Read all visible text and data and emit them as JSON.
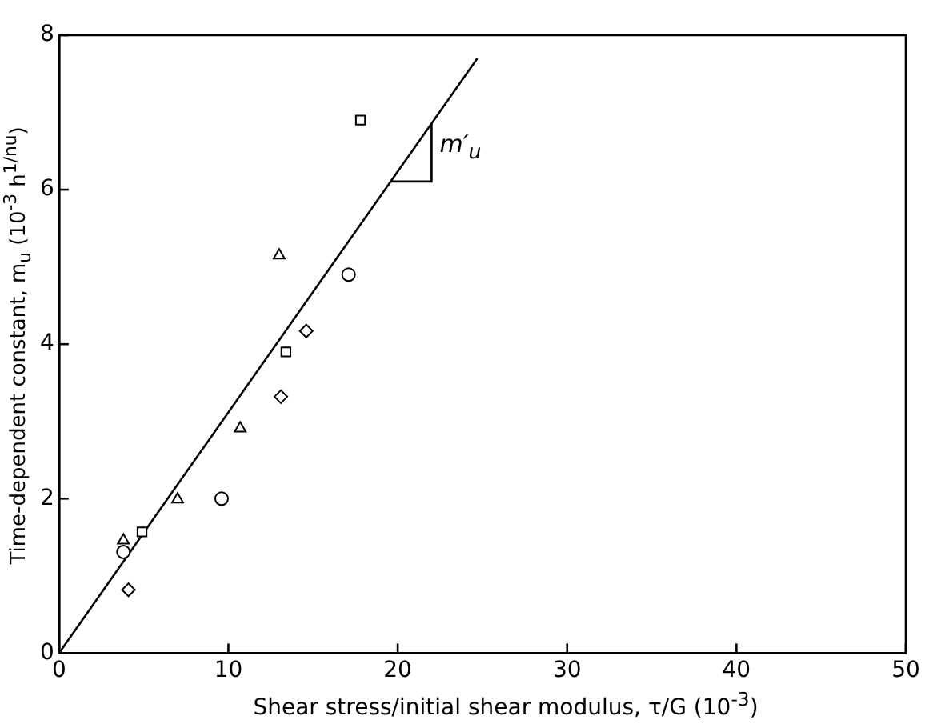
{
  "chart_data": {
    "type": "scatter",
    "xlabel": "Shear stress/initial shear modulus, τ/G (10$^{-3}$)",
    "ylabel": "Time-dependent constant, m$_{u}$ (10$^{-3}$ h$^{1/nu}$)",
    "xlim": [
      0,
      50
    ],
    "ylim": [
      0,
      8
    ],
    "xticks": [
      0,
      10,
      20,
      30,
      40,
      50
    ],
    "yticks": [
      0,
      2,
      4,
      6,
      8
    ],
    "grid": false,
    "legend": false,
    "series": [
      {
        "color": "#000000",
        "marker": "square",
        "x": [
          17.8,
          13.4,
          4.9
        ],
        "values": [
          6.9,
          3.9,
          1.57
        ]
      },
      {
        "color": "#000000",
        "marker": "triangle",
        "x": [
          13.0,
          10.7,
          7.0,
          3.8
        ],
        "values": [
          5.15,
          2.91,
          1.99,
          1.46
        ]
      },
      {
        "color": "#000000",
        "marker": "circle",
        "x": [
          17.1,
          9.6,
          3.8
        ],
        "values": [
          4.9,
          2.0,
          1.31
        ]
      },
      {
        "color": "#000000",
        "marker": "diamond",
        "x": [
          14.6,
          13.1,
          4.1
        ],
        "values": [
          4.17,
          3.32,
          0.82
        ]
      },
      {
        "type": "line",
        "color": "#000000",
        "marker": "none",
        "x": [
          0,
          24.7
        ],
        "values": [
          0,
          7.7
        ]
      }
    ],
    "annotations": [
      {
        "text": "m′$_{u}$",
        "x": 22.0,
        "y": 6.86
      }
    ]
  }
}
